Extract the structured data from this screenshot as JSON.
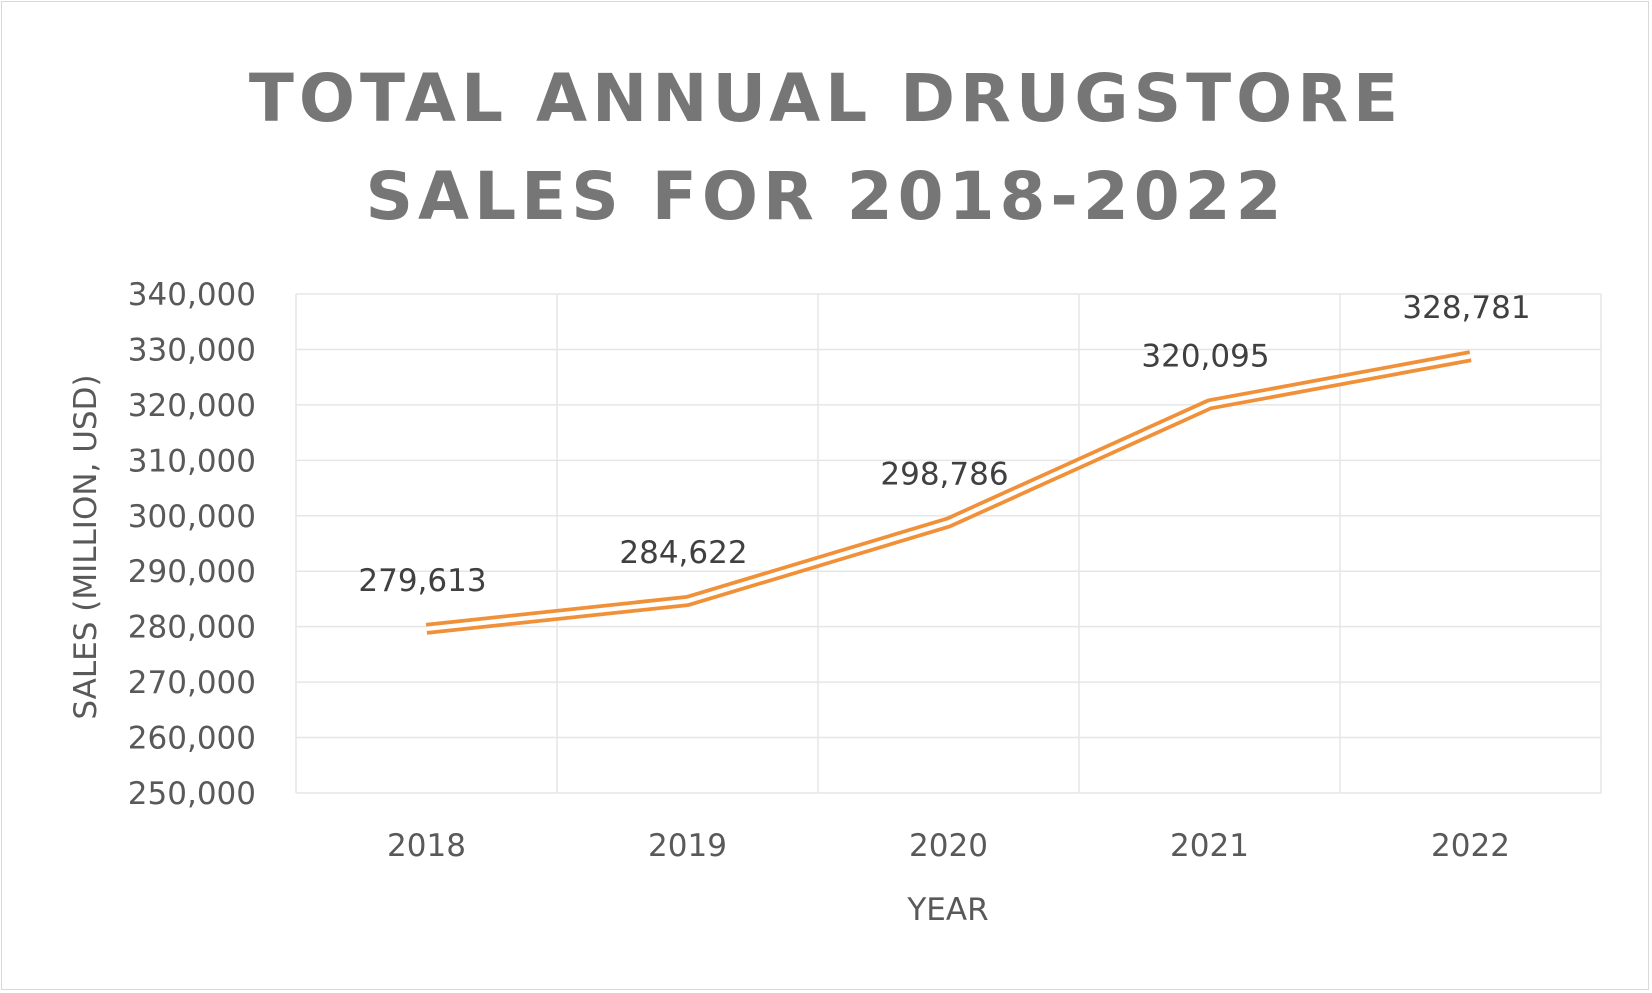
{
  "chart_data": {
    "type": "line",
    "title": "TOTAL ANNUAL DRUGSTORE\nSALES FOR 2018-2022",
    "xlabel": "YEAR",
    "ylabel": "SALES (MILLION, USD)",
    "categories": [
      "2018",
      "2019",
      "2020",
      "2021",
      "2022"
    ],
    "series": [
      {
        "values": [
          279613,
          284622,
          298786,
          320095,
          328781
        ],
        "labels": [
          "279,613",
          "284,622",
          "298,786",
          "320,095",
          "328,781"
        ],
        "color": "#f0913a",
        "style": "double-line"
      }
    ],
    "ylim": [
      250000,
      340000
    ],
    "yticks": [
      250000,
      260000,
      270000,
      280000,
      290000,
      300000,
      310000,
      320000,
      330000,
      340000
    ],
    "ytick_labels": [
      "250,000",
      "260,000",
      "270,000",
      "280,000",
      "290,000",
      "300,000",
      "310,000",
      "320,000",
      "330,000",
      "340,000"
    ],
    "grid": true,
    "legend": "none"
  },
  "colors": {
    "title": "#767676",
    "tick_text": "#595959",
    "data_label_text": "#404040",
    "gridline": "#e6e6e6",
    "frame": "#d9d9d9"
  }
}
